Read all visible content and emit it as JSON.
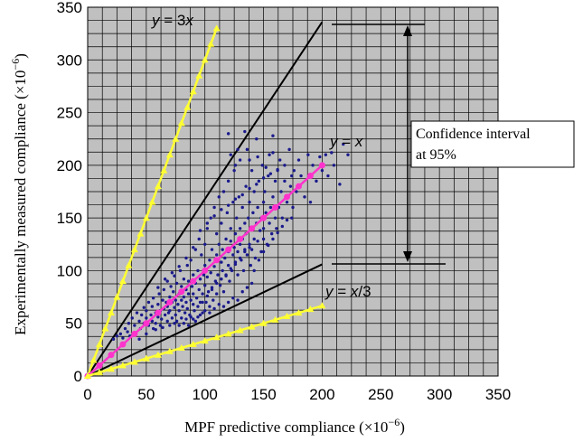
{
  "chart_data": {
    "type": "scatter",
    "xlabel": "MPF predictive compliance (×10",
    "xlabel_exp": "−6",
    "xlabel_close": ")",
    "ylabel": "Experimentally measured compliance (×10",
    "ylabel_exp": "−6",
    "ylabel_close": ")",
    "xlim": [
      0,
      350
    ],
    "ylim": [
      0,
      350
    ],
    "xticks": [
      "0",
      "50",
      "100",
      "150",
      "200",
      "250",
      "300",
      "350"
    ],
    "yticks": [
      "0",
      "50",
      "100",
      "150",
      "200",
      "250",
      "300",
      "350"
    ],
    "grid": true,
    "plot_background": "#c0c0c0",
    "annotations": {
      "y3x": {
        "italic": "y",
        "rest": " = 3",
        "italic2": "x"
      },
      "yx": {
        "italic": "y",
        "rest": " = ",
        "italic2": "x"
      },
      "yx3": {
        "italic": "y",
        "rest": " = ",
        "italic2": "x",
        "rest2": "/3"
      },
      "ci_line1": "Confidence interval",
      "ci_line2": "at 95%"
    },
    "lines": [
      {
        "kind": "y=3x",
        "color": "#ffff33",
        "marker": "triangle",
        "x_end": 110,
        "slope": 3,
        "marker_step": 5
      },
      {
        "kind": "y=x",
        "color": "#ff33cc",
        "marker": "circle",
        "x_end": 200,
        "slope": 1,
        "marker_step": 10
      },
      {
        "kind": "y=x/3",
        "color": "#ffff33",
        "marker": "triangle",
        "x_end": 200,
        "slope": 0.3333,
        "marker_step": 10
      },
      {
        "kind": "upper-95",
        "color": "#000000",
        "marker": "none",
        "x_end": 200,
        "slope": 1.68
      },
      {
        "kind": "lower-95",
        "color": "#000000",
        "marker": "none",
        "x_end": 200,
        "slope": 0.53
      }
    ],
    "scatter_color": "#1a1a8c",
    "scatter_points": [
      [
        22,
        35
      ],
      [
        25,
        38
      ],
      [
        28,
        40
      ],
      [
        30,
        36
      ],
      [
        32,
        45
      ],
      [
        34,
        42
      ],
      [
        35,
        50
      ],
      [
        36,
        38
      ],
      [
        38,
        55
      ],
      [
        40,
        48
      ],
      [
        40,
        40
      ],
      [
        42,
        60
      ],
      [
        44,
        52
      ],
      [
        45,
        45
      ],
      [
        46,
        58
      ],
      [
        48,
        50
      ],
      [
        48,
        65
      ],
      [
        50,
        55
      ],
      [
        50,
        62
      ],
      [
        52,
        48
      ],
      [
        52,
        70
      ],
      [
        54,
        58
      ],
      [
        55,
        52
      ],
      [
        55,
        66
      ],
      [
        56,
        74
      ],
      [
        58,
        60
      ],
      [
        58,
        50
      ],
      [
        60,
        68
      ],
      [
        60,
        56
      ],
      [
        61,
        78
      ],
      [
        62,
        62
      ],
      [
        63,
        54
      ],
      [
        64,
        72
      ],
      [
        65,
        64
      ],
      [
        65,
        82
      ],
      [
        66,
        58
      ],
      [
        67,
        70
      ],
      [
        68,
        66
      ],
      [
        68,
        90
      ],
      [
        69,
        60
      ],
      [
        70,
        75
      ],
      [
        70,
        62
      ],
      [
        71,
        85
      ],
      [
        72,
        70
      ],
      [
        72,
        55
      ],
      [
        73,
        80
      ],
      [
        74,
        65
      ],
      [
        74,
        95
      ],
      [
        75,
        72
      ],
      [
        75,
        58
      ],
      [
        76,
        88
      ],
      [
        77,
        68
      ],
      [
        78,
        78
      ],
      [
        78,
        62
      ],
      [
        79,
        100
      ],
      [
        80,
        72
      ],
      [
        80,
        85
      ],
      [
        80,
        55
      ],
      [
        81,
        66
      ],
      [
        82,
        92
      ],
      [
        82,
        75
      ],
      [
        83,
        60
      ],
      [
        84,
        82
      ],
      [
        84,
        70
      ],
      [
        85,
        105
      ],
      [
        85,
        64
      ],
      [
        86,
        78
      ],
      [
        86,
        90
      ],
      [
        87,
        58
      ],
      [
        88,
        72
      ],
      [
        88,
        110
      ],
      [
        89,
        85
      ],
      [
        90,
        68
      ],
      [
        90,
        96
      ],
      [
        90,
        78
      ],
      [
        91,
        62
      ],
      [
        92,
        88
      ],
      [
        92,
        120
      ],
      [
        93,
        74
      ],
      [
        94,
        100
      ],
      [
        94,
        66
      ],
      [
        95,
        82
      ],
      [
        95,
        130
      ],
      [
        96,
        92
      ],
      [
        96,
        70
      ],
      [
        97,
        115
      ],
      [
        98,
        78
      ],
      [
        98,
        60
      ],
      [
        99,
        96
      ],
      [
        100,
        86
      ],
      [
        100,
        105
      ],
      [
        100,
        125
      ],
      [
        101,
        70
      ],
      [
        102,
        94
      ],
      [
        102,
        140
      ],
      [
        103,
        80
      ],
      [
        104,
        110
      ],
      [
        104,
        66
      ],
      [
        105,
        98
      ],
      [
        105,
        150
      ],
      [
        106,
        84
      ],
      [
        106,
        120
      ],
      [
        107,
        72
      ],
      [
        108,
        104
      ],
      [
        108,
        160
      ],
      [
        109,
        90
      ],
      [
        110,
        115
      ],
      [
        110,
        78
      ],
      [
        110,
        135
      ],
      [
        111,
        96
      ],
      [
        112,
        125
      ],
      [
        112,
        170
      ],
      [
        113,
        86
      ],
      [
        114,
        108
      ],
      [
        114,
        145
      ],
      [
        115,
        100
      ],
      [
        115,
        120
      ],
      [
        116,
        80
      ],
      [
        116,
        175
      ],
      [
        117,
        112
      ],
      [
        118,
        130
      ],
      [
        118,
        95
      ],
      [
        119,
        155
      ],
      [
        120,
        105
      ],
      [
        120,
        118
      ],
      [
        120,
        185
      ],
      [
        121,
        90
      ],
      [
        122,
        128
      ],
      [
        122,
        140
      ],
      [
        123,
        100
      ],
      [
        124,
        165
      ],
      [
        124,
        115
      ],
      [
        125,
        122
      ],
      [
        125,
        195
      ],
      [
        126,
        108
      ],
      [
        126,
        135
      ],
      [
        127,
        150
      ],
      [
        128,
        96
      ],
      [
        128,
        118
      ],
      [
        129,
        170
      ],
      [
        130,
        125
      ],
      [
        130,
        140
      ],
      [
        130,
        205
      ],
      [
        131,
        110
      ],
      [
        132,
        130
      ],
      [
        132,
        160
      ],
      [
        133,
        100
      ],
      [
        134,
        145
      ],
      [
        134,
        120
      ],
      [
        135,
        180
      ],
      [
        135,
        135
      ],
      [
        136,
        115
      ],
      [
        136,
        215
      ],
      [
        137,
        150
      ],
      [
        138,
        125
      ],
      [
        138,
        165
      ],
      [
        139,
        105
      ],
      [
        140,
        140
      ],
      [
        140,
        120
      ],
      [
        140,
        195
      ],
      [
        141,
        155
      ],
      [
        142,
        130
      ],
      [
        142,
        175
      ],
      [
        143,
        112
      ],
      [
        144,
        145
      ],
      [
        144,
        225
      ],
      [
        145,
        160
      ],
      [
        145,
        128
      ],
      [
        146,
        185
      ],
      [
        147,
        138
      ],
      [
        148,
        150
      ],
      [
        148,
        118
      ],
      [
        149,
        200
      ],
      [
        150,
        165
      ],
      [
        150,
        140
      ],
      [
        150,
        130
      ],
      [
        151,
        175
      ],
      [
        152,
        155
      ],
      [
        153,
        125
      ],
      [
        154,
        190
      ],
      [
        155,
        145
      ],
      [
        155,
        210
      ],
      [
        156,
        160
      ],
      [
        157,
        135
      ],
      [
        158,
        170
      ],
      [
        158,
        228
      ],
      [
        160,
        150
      ],
      [
        160,
        185
      ],
      [
        161,
        140
      ],
      [
        162,
        195
      ],
      [
        163,
        160
      ],
      [
        165,
        175
      ],
      [
        166,
        150
      ],
      [
        168,
        200
      ],
      [
        170,
        165
      ],
      [
        172,
        215
      ],
      [
        173,
        180
      ],
      [
        175,
        160
      ],
      [
        176,
        195
      ],
      [
        178,
        175
      ],
      [
        180,
        205
      ],
      [
        182,
        190
      ],
      [
        185,
        170
      ],
      [
        188,
        210
      ],
      [
        190,
        165
      ],
      [
        192,
        200
      ],
      [
        195,
        185
      ],
      [
        198,
        208
      ],
      [
        200,
        195
      ],
      [
        203,
        210
      ],
      [
        205,
        190
      ],
      [
        208,
        212
      ],
      [
        210,
        200
      ],
      [
        215,
        182
      ],
      [
        218,
        220
      ],
      [
        222,
        210
      ],
      [
        56,
        45
      ],
      [
        62,
        48
      ],
      [
        68,
        52
      ],
      [
        74,
        50
      ],
      [
        78,
        48
      ],
      [
        84,
        54
      ],
      [
        88,
        56
      ],
      [
        92,
        52
      ],
      [
        96,
        58
      ],
      [
        100,
        62
      ],
      [
        104,
        60
      ],
      [
        108,
        64
      ],
      [
        112,
        68
      ],
      [
        116,
        66
      ],
      [
        120,
        70
      ],
      [
        124,
        74
      ],
      [
        128,
        72
      ],
      [
        132,
        80
      ],
      [
        136,
        84
      ],
      [
        140,
        88
      ],
      [
        44,
        35
      ],
      [
        50,
        40
      ],
      [
        58,
        44
      ],
      [
        64,
        46
      ],
      [
        70,
        48
      ],
      [
        76,
        52
      ],
      [
        82,
        50
      ],
      [
        86,
        48
      ],
      [
        90,
        54
      ],
      [
        94,
        56
      ],
      [
        98,
        70
      ],
      [
        102,
        76
      ],
      [
        106,
        82
      ],
      [
        110,
        88
      ],
      [
        114,
        92
      ],
      [
        118,
        96
      ],
      [
        122,
        102
      ],
      [
        126,
        106
      ],
      [
        130,
        112
      ],
      [
        134,
        118
      ],
      [
        138,
        122
      ],
      [
        142,
        100
      ],
      [
        146,
        110
      ],
      [
        150,
        118
      ],
      [
        154,
        124
      ],
      [
        158,
        130
      ],
      [
        162,
        136
      ],
      [
        166,
        142
      ],
      [
        170,
        148
      ],
      [
        174,
        150
      ],
      [
        60,
        84
      ],
      [
        66,
        92
      ],
      [
        72,
        98
      ],
      [
        78,
        104
      ],
      [
        84,
        112
      ],
      [
        90,
        122
      ],
      [
        96,
        138
      ],
      [
        102,
        145
      ],
      [
        108,
        152
      ],
      [
        114,
        158
      ],
      [
        120,
        162
      ],
      [
        126,
        168
      ],
      [
        132,
        172
      ],
      [
        138,
        178
      ],
      [
        144,
        182
      ],
      [
        150,
        188
      ],
      [
        156,
        192
      ],
      [
        162,
        196
      ],
      [
        168,
        185
      ],
      [
        174,
        190
      ],
      [
        120,
        230
      ],
      [
        122,
        210
      ],
      [
        126,
        200
      ],
      [
        128,
        215
      ],
      [
        134,
        232
      ],
      [
        138,
        205
      ],
      [
        145,
        208
      ],
      [
        152,
        198
      ],
      [
        158,
        212
      ],
      [
        164,
        205
      ]
    ]
  }
}
